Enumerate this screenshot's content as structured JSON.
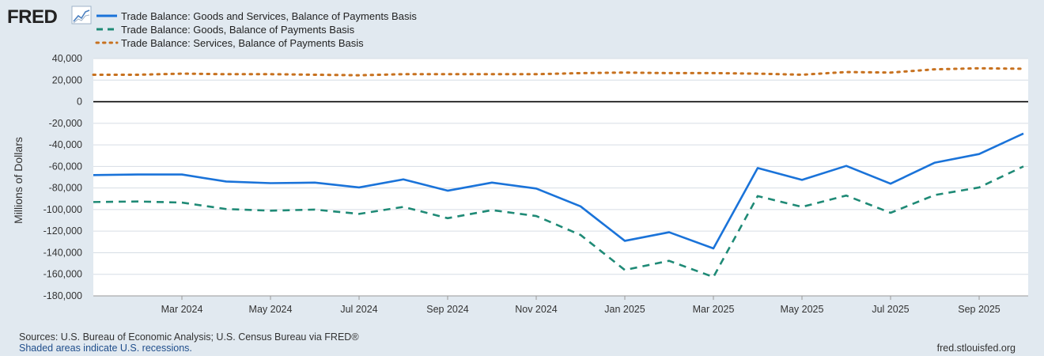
{
  "logo": {
    "text": "FRED"
  },
  "chart_data": {
    "type": "line",
    "title": "",
    "xlabel": "",
    "ylabel": "Millions of Dollars",
    "ylim": [
      -180000,
      40000
    ],
    "yticks": [
      40000,
      20000,
      0,
      -20000,
      -40000,
      -60000,
      -80000,
      -100000,
      -120000,
      -140000,
      -160000,
      -180000
    ],
    "ytick_labels": [
      "40,000",
      "20,000",
      "0",
      "-20,000",
      "-40,000",
      "-60,000",
      "-80,000",
      "-100,000",
      "-120,000",
      "-140,000",
      "-160,000",
      "-180,000"
    ],
    "x": [
      "Jan 2024",
      "Feb 2024",
      "Mar 2024",
      "Apr 2024",
      "May 2024",
      "Jun 2024",
      "Jul 2024",
      "Aug 2024",
      "Sep 2024",
      "Oct 2024",
      "Nov 2024",
      "Dec 2024",
      "Jan 2025",
      "Feb 2025",
      "Mar 2025",
      "Apr 2025",
      "May 2025",
      "Jun 2025",
      "Jul 2025",
      "Aug 2025",
      "Sep 2025",
      "Oct 2025"
    ],
    "xticks": [
      {
        "index": 2,
        "label": "Mar 2024"
      },
      {
        "index": 4,
        "label": "May 2024"
      },
      {
        "index": 6,
        "label": "Jul 2024"
      },
      {
        "index": 8,
        "label": "Sep 2024"
      },
      {
        "index": 10,
        "label": "Nov 2024"
      },
      {
        "index": 12,
        "label": "Jan 2025"
      },
      {
        "index": 14,
        "label": "Mar 2025"
      },
      {
        "index": 16,
        "label": "May 2025"
      },
      {
        "index": 18,
        "label": "Jul 2025"
      },
      {
        "index": 20,
        "label": "Sep 2025"
      }
    ],
    "series": [
      {
        "name": "Trade Balance: Goods and Services, Balance of Payments Basis",
        "color": "#1a73d9",
        "style": "solid",
        "values": [
          -68000,
          -67500,
          -67500,
          -74000,
          -75500,
          -75000,
          -79500,
          -72000,
          -82500,
          -75000,
          -80500,
          -97000,
          -129000,
          -121000,
          -136000,
          -61500,
          -72500,
          -59500,
          -76000,
          -56500,
          -48500,
          -29500
        ]
      },
      {
        "name": "Trade Balance: Goods, Balance of Payments Basis",
        "color": "#1f8a76",
        "style": "dashed",
        "values": [
          -93000,
          -92500,
          -93500,
          -99500,
          -101000,
          -100000,
          -104000,
          -97500,
          -108000,
          -100500,
          -106000,
          -123500,
          -156000,
          -147500,
          -162500,
          -87500,
          -97500,
          -87000,
          -103000,
          -86500,
          -79500,
          -60000
        ]
      },
      {
        "name": "Trade Balance: Services, Balance of Payments Basis",
        "color": "#c7711f",
        "style": "dotted",
        "values": [
          25000,
          25000,
          26000,
          25500,
          25500,
          25000,
          24500,
          25500,
          25500,
          25500,
          25500,
          26500,
          27000,
          26500,
          26500,
          26000,
          25000,
          27500,
          27000,
          30000,
          31000,
          30500
        ]
      }
    ]
  },
  "footer": {
    "sources": "Sources: U.S. Bureau of Economic Analysis; U.S. Census Bureau via FRED®",
    "recessions": "Shaded areas indicate U.S. recessions.",
    "site": "fred.stlouisfed.org"
  }
}
